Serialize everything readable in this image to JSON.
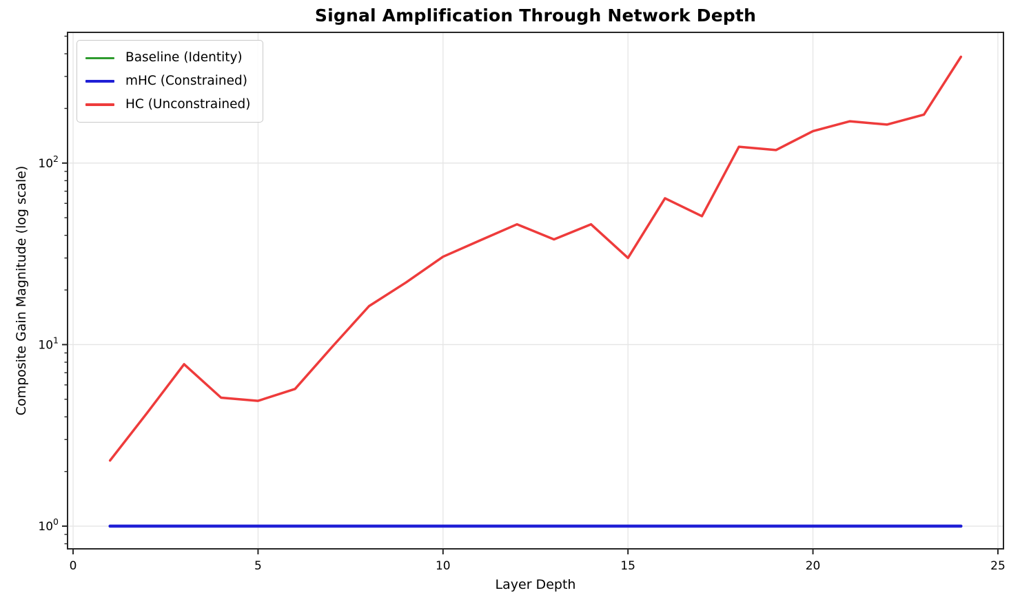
{
  "chart_data": {
    "type": "line",
    "title": "Signal Amplification Through Network Depth",
    "xlabel": "Layer Depth",
    "ylabel": "Composite Gain Magnitude (log scale)",
    "y_scale": "log",
    "grid": true,
    "legend_position": "upper-left",
    "xlim": [
      -0.15,
      25.15
    ],
    "ylim_log": [
      -0.125,
      2.72
    ],
    "x_ticks": [
      0,
      5,
      10,
      15,
      20,
      25
    ],
    "y_ticks": [
      {
        "base": "10",
        "exp": "0",
        "value": 1
      },
      {
        "base": "10",
        "exp": "1",
        "value": 10
      },
      {
        "base": "10",
        "exp": "2",
        "value": 100
      }
    ],
    "y_minor_decades": [
      0.1,
      1,
      10,
      100
    ],
    "x": [
      1,
      2,
      3,
      4,
      5,
      6,
      7,
      8,
      9,
      10,
      11,
      12,
      13,
      14,
      15,
      16,
      17,
      18,
      19,
      20,
      21,
      22,
      23,
      24
    ],
    "series": [
      {
        "id": "baseline",
        "name": "Baseline (Identity)",
        "color": "#2e9b2e",
        "width": 3,
        "values": [
          1.0,
          1.0,
          1.0,
          1.0,
          1.0,
          1.0,
          1.0,
          1.0,
          1.0,
          1.0,
          1.0,
          1.0,
          1.0,
          1.0,
          1.0,
          1.0,
          1.0,
          1.0,
          1.0,
          1.0,
          1.0,
          1.0,
          1.0,
          1.0
        ]
      },
      {
        "id": "mhc",
        "name": "mHC (Constrained)",
        "color": "#1f1fd6",
        "width": 4.5,
        "values": [
          1.0,
          1.0,
          1.0,
          1.0,
          1.0,
          1.0,
          1.0,
          1.0,
          1.0,
          1.0,
          1.0,
          1.0,
          1.0,
          1.0,
          1.0,
          1.0,
          1.0,
          1.0,
          1.0,
          1.0,
          1.0,
          1.0,
          1.0,
          1.0
        ]
      },
      {
        "id": "hc",
        "name": "HC (Unconstrained)",
        "color": "#ee3b3b",
        "width": 3.5,
        "values": [
          2.3,
          4.2,
          7.8,
          5.1,
          4.9,
          5.7,
          9.7,
          16.3,
          22,
          30.5,
          37.5,
          46,
          38,
          46,
          30,
          64,
          51,
          123,
          118,
          150,
          170,
          163,
          185,
          385
        ]
      }
    ],
    "colors": {
      "grid": "#e5e5e5",
      "axis": "#262626",
      "background": "#ffffff"
    }
  }
}
